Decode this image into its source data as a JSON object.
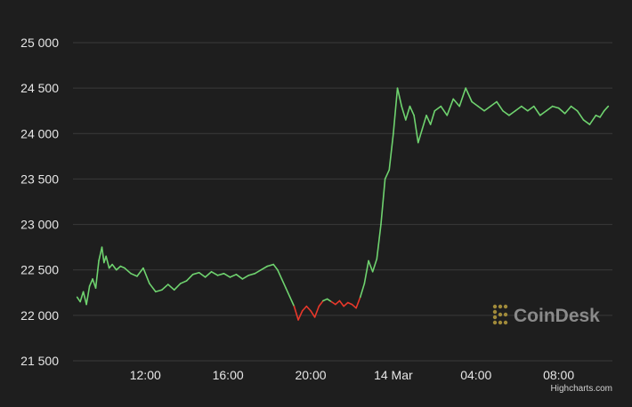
{
  "chart_data": {
    "type": "line",
    "title": "",
    "xlabel": "",
    "ylabel": "",
    "ylim": [
      21500,
      25000
    ],
    "y_ticks": [
      21500,
      22000,
      22500,
      23000,
      23500,
      24000,
      24500,
      25000
    ],
    "y_tick_labels": [
      "21 500",
      "22 000",
      "22 500",
      "23 000",
      "23 500",
      "24 000",
      "24 500",
      "25 000"
    ],
    "x_range_hours": [
      8.5,
      10.6
    ],
    "x_ticks": [
      {
        "hour": 12,
        "label": "12:00"
      },
      {
        "hour": 16,
        "label": "16:00"
      },
      {
        "hour": 20,
        "label": "20:00"
      },
      {
        "hour": 24,
        "label": "14 Mar"
      },
      {
        "hour": 28,
        "label": "04:00"
      },
      {
        "hour": 32,
        "label": "08:00"
      }
    ],
    "grid": true,
    "up_color": "#6fd36f",
    "down_color": "#e8382b",
    "baseline": 22150,
    "series": [
      {
        "x": [
          8.7,
          8.85,
          9.0,
          9.15,
          9.3,
          9.45,
          9.6,
          9.75,
          9.9,
          10.0,
          10.1,
          10.25,
          10.4,
          10.6,
          10.8,
          11.0,
          11.3,
          11.6,
          11.9,
          12.2,
          12.5,
          12.8,
          13.1,
          13.4,
          13.7,
          14.0,
          14.3,
          14.6,
          14.9,
          15.2,
          15.5,
          15.8,
          16.1,
          16.4,
          16.7,
          17.0,
          17.3,
          17.6,
          17.9,
          18.2,
          18.4,
          18.6,
          18.8,
          19.0,
          19.2,
          19.4,
          19.6,
          19.8,
          20.0,
          20.2,
          20.4,
          20.6,
          20.8,
          21.0,
          21.2,
          21.4,
          21.6,
          21.8,
          22.0,
          22.2,
          22.4,
          22.6,
          22.8,
          23.0,
          23.2,
          23.4,
          23.6,
          23.8,
          24.0,
          24.2,
          24.4,
          24.6,
          24.8,
          25.0,
          25.2,
          25.4,
          25.6,
          25.8,
          26.0,
          26.3,
          26.6,
          26.9,
          27.2,
          27.5,
          27.8,
          28.1,
          28.4,
          28.7,
          29.0,
          29.3,
          29.6,
          29.9,
          30.2,
          30.5,
          30.8,
          31.1,
          31.4,
          31.7,
          32.0,
          32.3,
          32.6,
          32.9,
          33.2,
          33.5,
          33.8,
          34.0,
          34.2,
          34.4
        ],
        "y": [
          22200,
          22150,
          22260,
          22120,
          22320,
          22400,
          22300,
          22600,
          22750,
          22580,
          22650,
          22520,
          22560,
          22500,
          22540,
          22520,
          22460,
          22430,
          22520,
          22350,
          22260,
          22280,
          22340,
          22280,
          22350,
          22380,
          22450,
          22470,
          22420,
          22480,
          22440,
          22460,
          22420,
          22450,
          22400,
          22440,
          22460,
          22500,
          22540,
          22560,
          22500,
          22400,
          22300,
          22200,
          22100,
          21950,
          22050,
          22100,
          22050,
          21980,
          22100,
          22160,
          22180,
          22150,
          22120,
          22160,
          22100,
          22140,
          22120,
          22080,
          22200,
          22350,
          22600,
          22480,
          22620,
          23000,
          23500,
          23600,
          24000,
          24500,
          24300,
          24150,
          24300,
          24200,
          23900,
          24050,
          24200,
          24100,
          24250,
          24300,
          24200,
          24380,
          24300,
          24500,
          24350,
          24300,
          24250,
          24300,
          24350,
          24250,
          24200,
          24250,
          24300,
          24250,
          24300,
          24200,
          24250,
          24300,
          24280,
          24220,
          24300,
          24250,
          24150,
          24100,
          24200,
          24180,
          24250,
          24300
        ]
      }
    ]
  },
  "watermark": {
    "text": "CoinDesk",
    "icon": "coindesk-logo-icon"
  },
  "credit": "Highcharts.com"
}
